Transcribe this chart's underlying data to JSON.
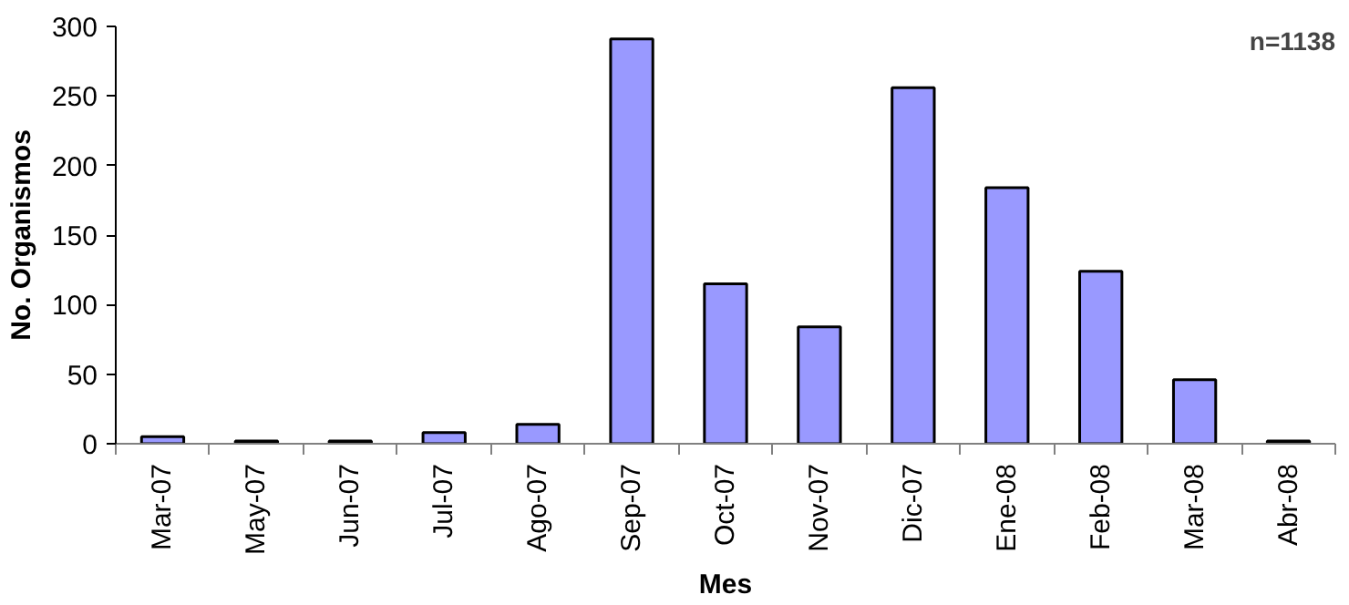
{
  "chart_data": {
    "type": "bar",
    "xlabel": "Mes",
    "ylabel": "No. Organismos",
    "categories": [
      "Mar-07",
      "May-07",
      "Jun-07",
      "Jul-07",
      "Ago-07",
      "Sep-07",
      "Oct-07",
      "Nov-07",
      "Dic-07",
      "Ene-08",
      "Feb-08",
      "Mar-08",
      "Abr-08"
    ],
    "values": [
      5,
      2,
      2,
      8,
      14,
      291,
      115,
      84,
      256,
      184,
      124,
      46,
      2
    ],
    "color": "#9999ff",
    "ylim": [
      0,
      300
    ],
    "yticks": [
      0,
      50,
      100,
      150,
      200,
      250,
      300
    ],
    "grid": false,
    "annotations": [
      "n=1138"
    ]
  }
}
